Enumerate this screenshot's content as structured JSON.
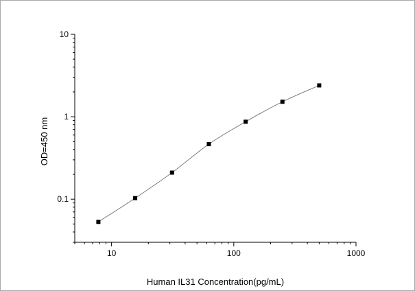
{
  "chart_data": {
    "type": "scatter",
    "title": "",
    "xlabel": "Human IL31 Concentration(pg/mL)",
    "ylabel": "OD=450 nm",
    "x_scale": "log",
    "y_scale": "log",
    "xlim": [
      5,
      1000
    ],
    "ylim": [
      0.03,
      10
    ],
    "x_ticks": [
      10,
      100,
      1000
    ],
    "x_tick_labels": [
      "10",
      "100",
      "1000"
    ],
    "y_ticks": [
      0.1,
      1,
      10
    ],
    "y_tick_labels": [
      "0.1",
      "1",
      "10"
    ],
    "grid": false,
    "legend": "none",
    "series": [
      {
        "x": [
          7.8,
          15.6,
          31.25,
          62.5,
          125,
          250,
          500
        ],
        "y": [
          0.053,
          0.103,
          0.21,
          0.465,
          0.87,
          1.52,
          2.4
        ],
        "marker": "square",
        "fitted_curve": true
      }
    ],
    "colors": {
      "axis": "#000000",
      "marker": "#000000",
      "curve": "#808080",
      "frame_border": "#a8a8a8"
    }
  }
}
